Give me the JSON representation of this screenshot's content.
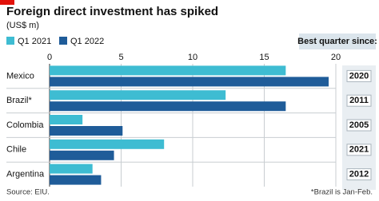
{
  "chart_data": {
    "type": "bar",
    "title": "Foreign direct investment has spiked",
    "subtitle": "(US$ m)",
    "categories": [
      "Mexico",
      "Brazil*",
      "Colombia",
      "Chile",
      "Argentina"
    ],
    "series": [
      {
        "name": "Q1 2021",
        "color": "#3ebcd2",
        "values": [
          16.5,
          12.3,
          2.3,
          8.0,
          3.0
        ]
      },
      {
        "name": "Q1 2022",
        "color": "#1f5c99",
        "values": [
          19.5,
          16.5,
          5.1,
          4.5,
          3.6
        ]
      }
    ],
    "xlim": [
      0,
      20
    ],
    "xticks": [
      0,
      5,
      10,
      15,
      20
    ],
    "grid": true,
    "best_quarter_since": {
      "label": "Best quarter since:",
      "values": [
        "2020",
        "2011",
        "2005",
        "2021",
        "2012"
      ]
    },
    "source": "Source: EIU.",
    "note": "*Brazil is Jan-Feb."
  }
}
